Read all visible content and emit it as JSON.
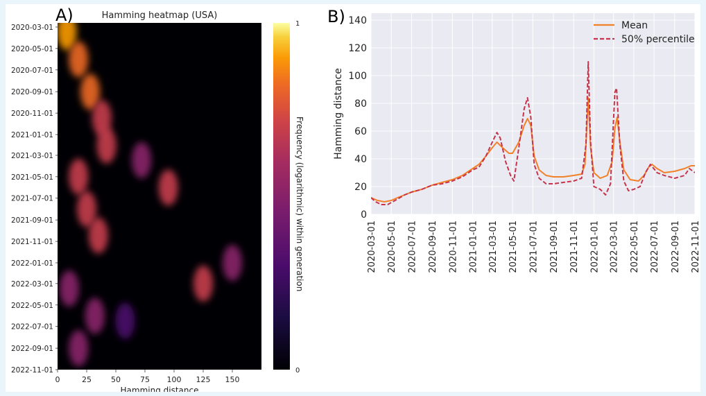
{
  "panel_a": {
    "letter": "A)",
    "chart_data": {
      "type": "heatmap",
      "title": "Hamming heatmap (USA)",
      "xlabel": "Hamming distance",
      "ylabel": "",
      "x_ticks": [
        0,
        25,
        50,
        75,
        100,
        125,
        150
      ],
      "xlim": [
        0,
        175
      ],
      "y_ticks": [
        "2020-03-01",
        "2020-05-01",
        "2020-07-01",
        "2020-09-01",
        "2020-11-01",
        "2021-01-01",
        "2021-03-01",
        "2021-05-01",
        "2021-07-01",
        "2021-09-01",
        "2021-11-01",
        "2022-01-01",
        "2022-03-01",
        "2022-05-01",
        "2022-07-01",
        "2022-09-01",
        "2022-11-01"
      ],
      "colorbar": {
        "label": "Frequency (logarithmic) within generation",
        "min": 0,
        "max": 1,
        "colormap": "inferno",
        "ticks": [
          "0",
          "1"
        ]
      },
      "hotspots": [
        {
          "date": "2020-03-15",
          "hamming": 8,
          "intensity": 0.95
        },
        {
          "date": "2020-06-01",
          "hamming": 18,
          "intensity": 0.85
        },
        {
          "date": "2020-09-01",
          "hamming": 28,
          "intensity": 0.8
        },
        {
          "date": "2020-11-15",
          "hamming": 38,
          "intensity": 0.75
        },
        {
          "date": "2021-02-01",
          "hamming": 42,
          "intensity": 0.7
        },
        {
          "date": "2021-03-15",
          "hamming": 72,
          "intensity": 0.55
        },
        {
          "date": "2021-05-01",
          "hamming": 18,
          "intensity": 0.65
        },
        {
          "date": "2021-06-01",
          "hamming": 95,
          "intensity": 0.7
        },
        {
          "date": "2021-08-01",
          "hamming": 25,
          "intensity": 0.75
        },
        {
          "date": "2021-10-15",
          "hamming": 35,
          "intensity": 0.7
        },
        {
          "date": "2022-01-01",
          "hamming": 150,
          "intensity": 0.6
        },
        {
          "date": "2022-03-01",
          "hamming": 125,
          "intensity": 0.65
        },
        {
          "date": "2022-03-15",
          "hamming": 10,
          "intensity": 0.6
        },
        {
          "date": "2022-06-01",
          "hamming": 32,
          "intensity": 0.55
        },
        {
          "date": "2022-06-15",
          "hamming": 58,
          "intensity": 0.45
        },
        {
          "date": "2022-09-01",
          "hamming": 18,
          "intensity": 0.6
        }
      ]
    }
  },
  "panel_b": {
    "letter": "B)",
    "chart_data": {
      "type": "line",
      "title": "",
      "xlabel": "",
      "ylabel": "Hamming distance",
      "ylim": [
        0,
        145
      ],
      "y_ticks": [
        0,
        20,
        40,
        60,
        80,
        100,
        120,
        140
      ],
      "x_ticks": [
        "2020-03-01",
        "2020-05-01",
        "2020-07-01",
        "2020-09-01",
        "2020-11-01",
        "2021-01-01",
        "2021-03-01",
        "2021-05-01",
        "2021-07-01",
        "2021-09-01",
        "2021-11-01",
        "2022-01-01",
        "2022-03-01",
        "2022-05-01",
        "2022-07-01",
        "2022-09-01",
        "2022-11-01"
      ],
      "xlim": [
        "2020-03-01",
        "2022-11-01"
      ],
      "grid": true,
      "legend_position": "top-right",
      "series": [
        {
          "name": "Mean",
          "color": "#f28027",
          "style": "solid",
          "points": [
            [
              "2020-03-01",
              12
            ],
            [
              "2020-03-20",
              10
            ],
            [
              "2020-04-10",
              9
            ],
            [
              "2020-05-01",
              10
            ],
            [
              "2020-05-20",
              12
            ],
            [
              "2020-06-10",
              14
            ],
            [
              "2020-07-01",
              16
            ],
            [
              "2020-08-01",
              18
            ],
            [
              "2020-09-01",
              21
            ],
            [
              "2020-10-01",
              23
            ],
            [
              "2020-11-01",
              25
            ],
            [
              "2020-12-01",
              28
            ],
            [
              "2021-01-01",
              33
            ],
            [
              "2021-01-20",
              36
            ],
            [
              "2021-02-10",
              42
            ],
            [
              "2021-03-01",
              48
            ],
            [
              "2021-03-15",
              52
            ],
            [
              "2021-04-01",
              48
            ],
            [
              "2021-04-20",
              44
            ],
            [
              "2021-05-01",
              44
            ],
            [
              "2021-05-20",
              52
            ],
            [
              "2021-06-05",
              64
            ],
            [
              "2021-06-15",
              69
            ],
            [
              "2021-06-25",
              64
            ],
            [
              "2021-07-05",
              42
            ],
            [
              "2021-07-20",
              32
            ],
            [
              "2021-08-10",
              28
            ],
            [
              "2021-09-01",
              27
            ],
            [
              "2021-10-01",
              27
            ],
            [
              "2021-11-01",
              28
            ],
            [
              "2021-11-25",
              29
            ],
            [
              "2021-12-05",
              36
            ],
            [
              "2021-12-15",
              84
            ],
            [
              "2021-12-22",
              48
            ],
            [
              "2022-01-01",
              30
            ],
            [
              "2022-01-20",
              26
            ],
            [
              "2022-02-10",
              28
            ],
            [
              "2022-02-25",
              38
            ],
            [
              "2022-03-05",
              62
            ],
            [
              "2022-03-12",
              70
            ],
            [
              "2022-03-20",
              52
            ],
            [
              "2022-04-01",
              32
            ],
            [
              "2022-04-20",
              25
            ],
            [
              "2022-05-15",
              24
            ],
            [
              "2022-06-01",
              28
            ],
            [
              "2022-06-15",
              34
            ],
            [
              "2022-06-25",
              36
            ],
            [
              "2022-07-10",
              33
            ],
            [
              "2022-08-01",
              30
            ],
            [
              "2022-09-01",
              31
            ],
            [
              "2022-10-01",
              33
            ],
            [
              "2022-10-20",
              35
            ],
            [
              "2022-11-01",
              35
            ]
          ]
        },
        {
          "name": "50% percentile",
          "color": "#c7334a",
          "style": "dashed",
          "points": [
            [
              "2020-03-01",
              12
            ],
            [
              "2020-03-15",
              9
            ],
            [
              "2020-04-01",
              7
            ],
            [
              "2020-04-20",
              7
            ],
            [
              "2020-05-05",
              9
            ],
            [
              "2020-05-20",
              11
            ],
            [
              "2020-06-10",
              14
            ],
            [
              "2020-07-01",
              16
            ],
            [
              "2020-08-01",
              18
            ],
            [
              "2020-09-01",
              21
            ],
            [
              "2020-10-01",
              22
            ],
            [
              "2020-11-01",
              24
            ],
            [
              "2020-12-01",
              27
            ],
            [
              "2021-01-01",
              32
            ],
            [
              "2021-01-20",
              34
            ],
            [
              "2021-02-10",
              42
            ],
            [
              "2021-03-01",
              52
            ],
            [
              "2021-03-15",
              59
            ],
            [
              "2021-03-25",
              55
            ],
            [
              "2021-04-10",
              38
            ],
            [
              "2021-04-25",
              28
            ],
            [
              "2021-05-05",
              24
            ],
            [
              "2021-05-20",
              48
            ],
            [
              "2021-06-05",
              76
            ],
            [
              "2021-06-15",
              84
            ],
            [
              "2021-06-25",
              70
            ],
            [
              "2021-07-05",
              36
            ],
            [
              "2021-07-20",
              26
            ],
            [
              "2021-08-10",
              22
            ],
            [
              "2021-09-01",
              22
            ],
            [
              "2021-10-01",
              23
            ],
            [
              "2021-11-01",
              24
            ],
            [
              "2021-11-25",
              26
            ],
            [
              "2021-12-08",
              50
            ],
            [
              "2021-12-15",
              110
            ],
            [
              "2021-12-22",
              52
            ],
            [
              "2022-01-01",
              20
            ],
            [
              "2022-01-20",
              18
            ],
            [
              "2022-02-05",
              14
            ],
            [
              "2022-02-20",
              22
            ],
            [
              "2022-03-05",
              88
            ],
            [
              "2022-03-10",
              91
            ],
            [
              "2022-03-20",
              50
            ],
            [
              "2022-04-01",
              24
            ],
            [
              "2022-04-15",
              17
            ],
            [
              "2022-05-01",
              18
            ],
            [
              "2022-05-20",
              20
            ],
            [
              "2022-06-05",
              30
            ],
            [
              "2022-06-20",
              36
            ],
            [
              "2022-07-10",
              30
            ],
            [
              "2022-08-01",
              28
            ],
            [
              "2022-09-01",
              26
            ],
            [
              "2022-10-01",
              28
            ],
            [
              "2022-10-15",
              33
            ],
            [
              "2022-11-01",
              30
            ]
          ]
        }
      ]
    }
  }
}
